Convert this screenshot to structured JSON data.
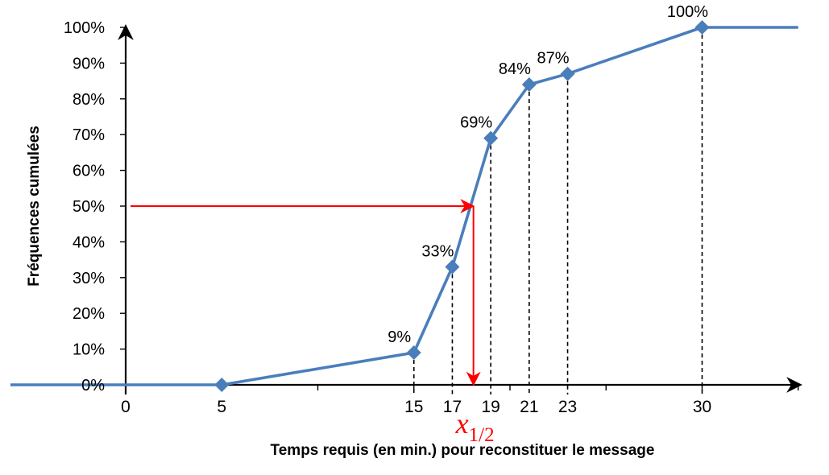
{
  "chart_data": {
    "type": "line",
    "xlabel": "Temps requis (en min.) pour reconstituer le message",
    "ylabel": "Fréquences cumulées",
    "x_ticks": [
      "0",
      "5",
      "15",
      "17",
      "19",
      "21",
      "23",
      "30"
    ],
    "y_ticks": [
      "0%",
      "10%",
      "20%",
      "30%",
      "40%",
      "50%",
      "60%",
      "70%",
      "80%",
      "90%",
      "100%"
    ],
    "xlim": [
      -6,
      35
    ],
    "ylim": [
      0,
      100
    ],
    "series": [
      {
        "x": [
          5,
          15,
          17,
          19,
          21,
          23,
          30
        ],
        "y": [
          0,
          9,
          33,
          69,
          84,
          87,
          100
        ],
        "labels": [
          "",
          "9%",
          "33%",
          "69%",
          "84%",
          "87%",
          "100%"
        ],
        "extend_left_to": -6,
        "extend_right_to": 35
      }
    ],
    "median": {
      "x": 18.1,
      "y": 50,
      "label_base": "x",
      "label_sub": "1/2"
    },
    "colors": {
      "series": "#4a7ebb",
      "marker": "#4a7ebb",
      "median": "#ff0000",
      "axis": "#000000",
      "guide": "#000000"
    },
    "grid": false
  }
}
